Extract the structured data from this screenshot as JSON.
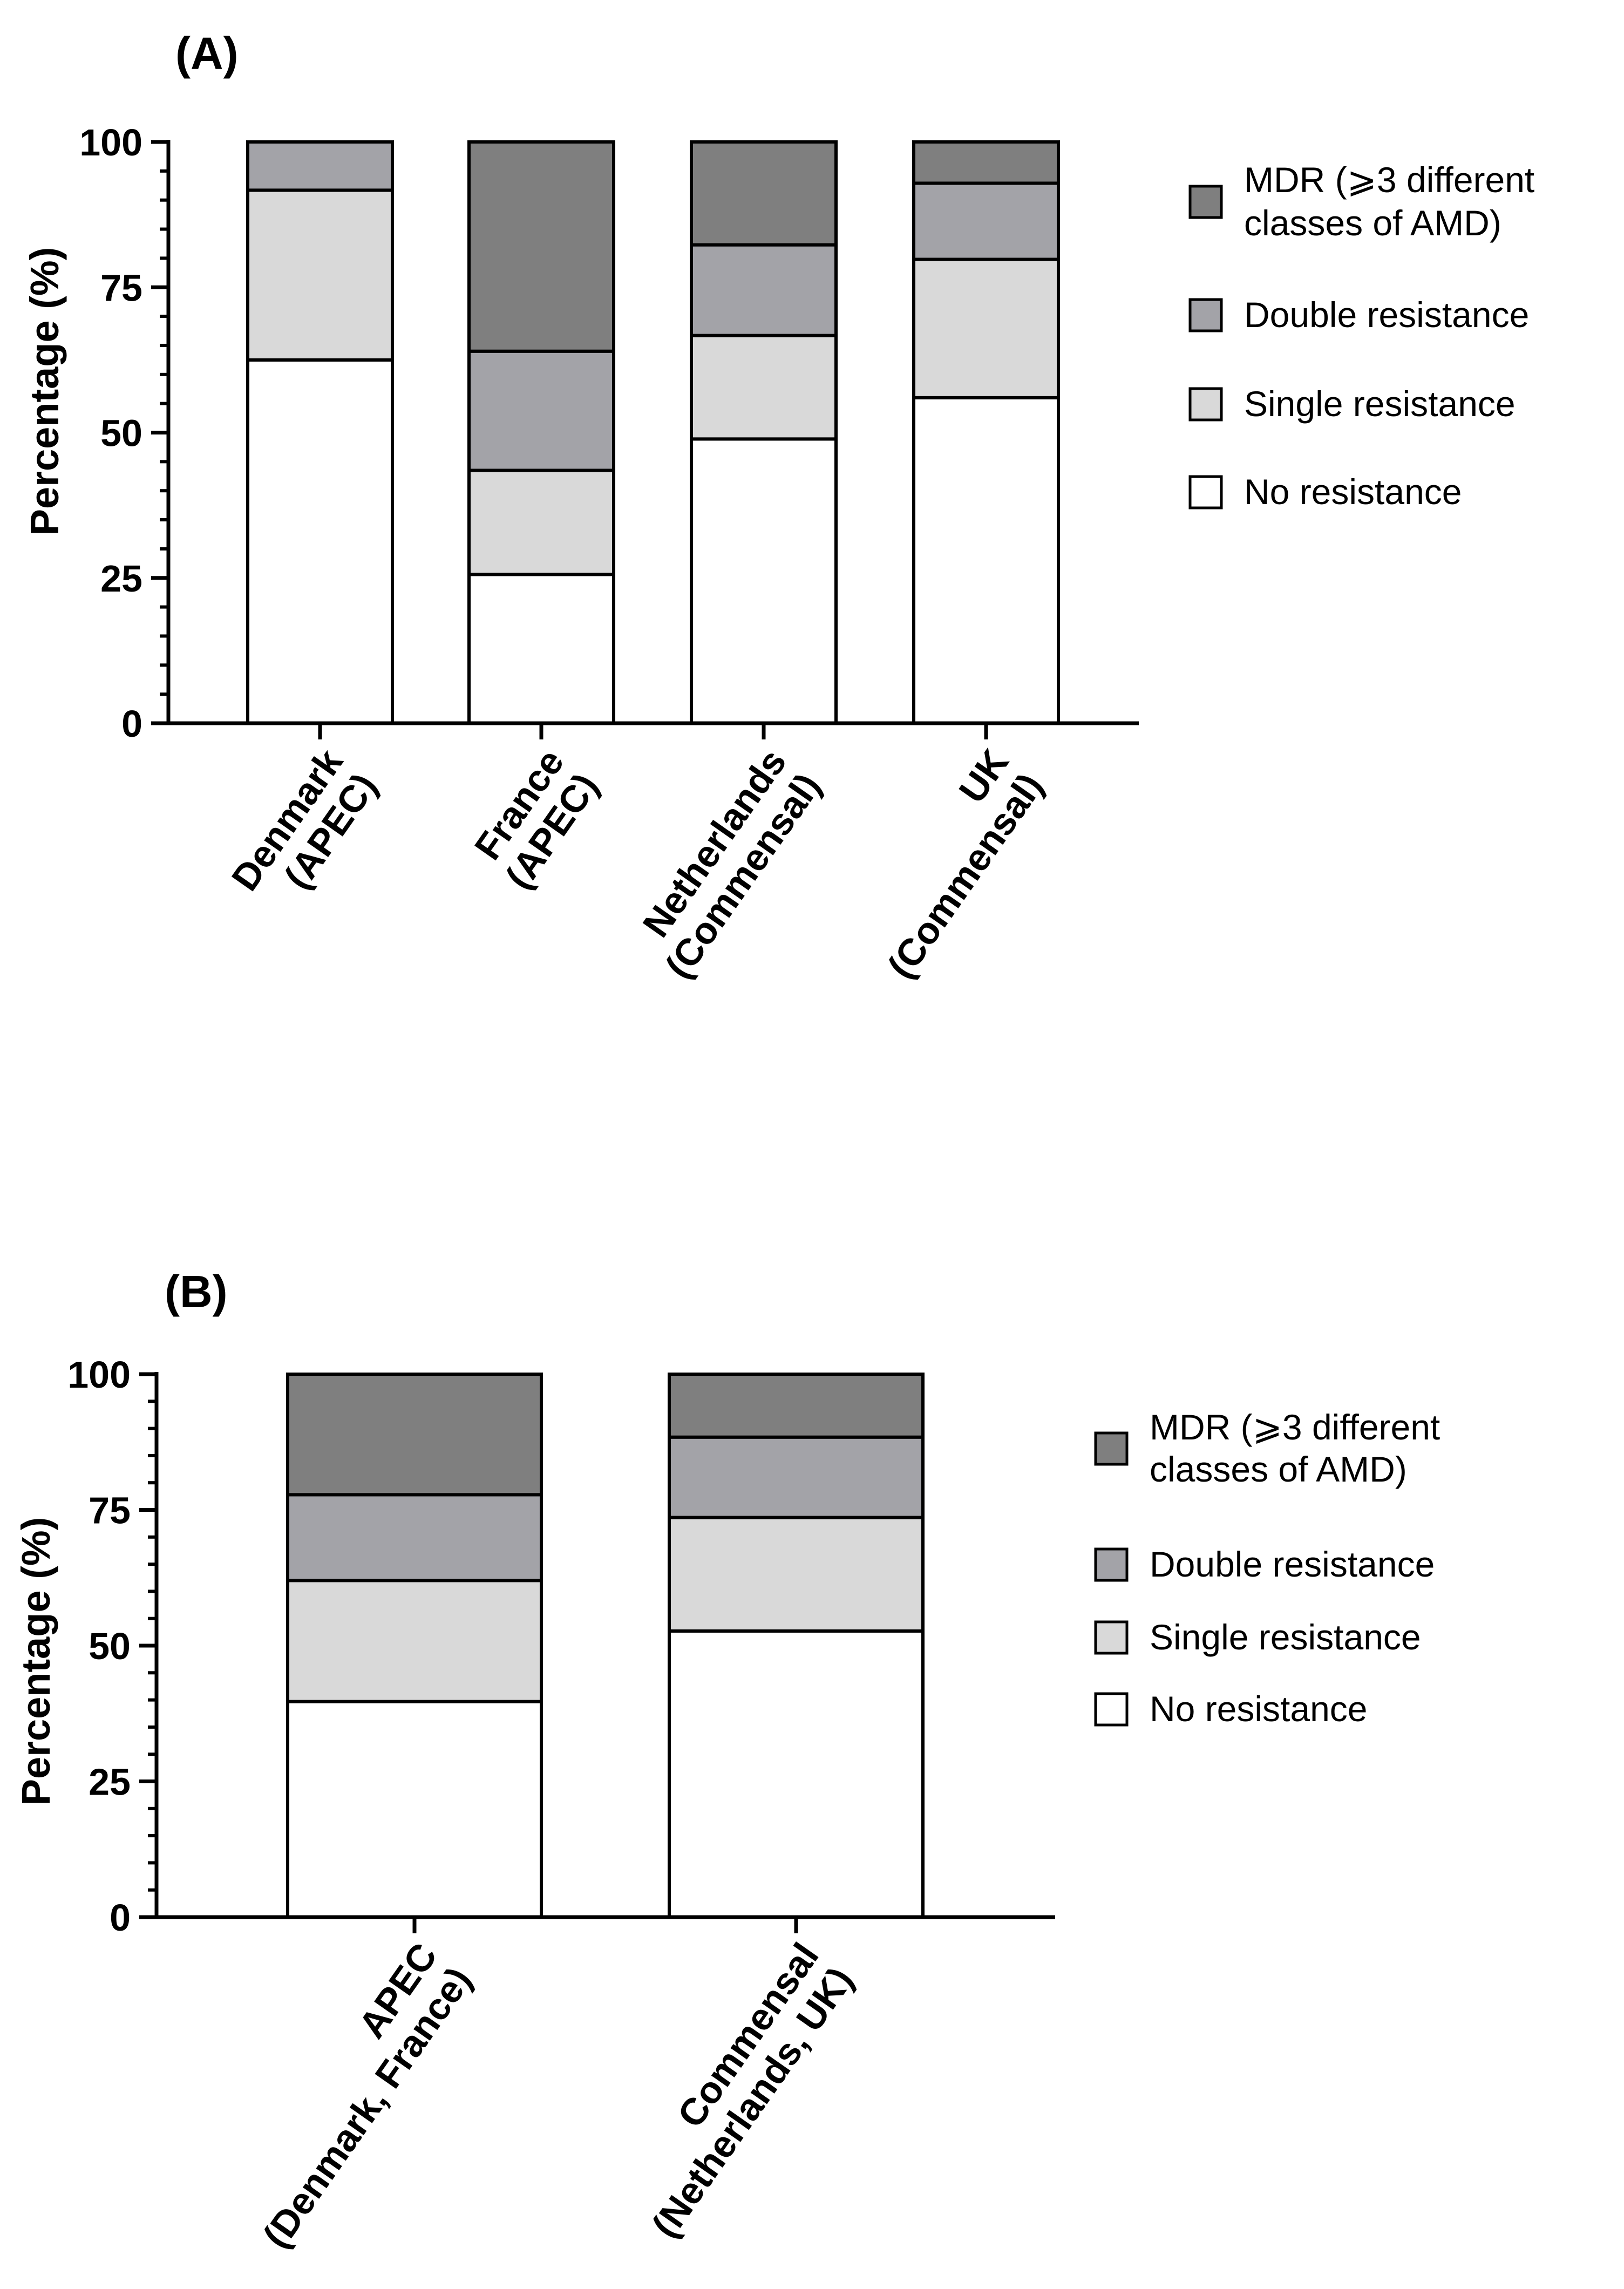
{
  "colors": {
    "MDR": "#7f7f7f",
    "double": "#a3a3a8",
    "single": "#d9d9d9",
    "none": "#ffffff"
  },
  "chart_data": [
    {
      "type": "bar",
      "stacked": true,
      "panel_label": "(A)",
      "title": "",
      "xlabel": "",
      "ylabel": "Percentage (%)",
      "ylim": [
        0,
        100
      ],
      "yticks": [
        "0",
        "25",
        "50",
        "75",
        "100"
      ],
      "categories": [
        [
          "Denmark",
          "(APEC)"
        ],
        [
          "France",
          "(APEC)"
        ],
        [
          "Netherlands",
          "(Commensal)"
        ],
        [
          "UK",
          "(Commensal)"
        ]
      ],
      "series": [
        {
          "key": "none",
          "name": "No resistance",
          "values": [
            62.5,
            25.6,
            48.9,
            56.0
          ]
        },
        {
          "key": "single",
          "name": "Single resistance",
          "values": [
            29.2,
            17.9,
            17.8,
            23.8
          ]
        },
        {
          "key": "double",
          "name": "Double resistance",
          "values": [
            8.3,
            20.5,
            15.6,
            13.1
          ]
        },
        {
          "key": "MDR",
          "name": "MDR (⩾3 different classes of AMD)",
          "values": [
            0.0,
            36.0,
            17.7,
            7.1
          ]
        }
      ],
      "legend": [
        {
          "key": "MDR",
          "lines": [
            "MDR (⩾3 different",
            "classes of AMD)"
          ]
        },
        {
          "key": "double",
          "lines": [
            "Double resistance"
          ]
        },
        {
          "key": "single",
          "lines": [
            "Single resistance"
          ]
        },
        {
          "key": "none",
          "lines": [
            "No resistance"
          ]
        }
      ],
      "legend_position": "right"
    },
    {
      "type": "bar",
      "stacked": true,
      "panel_label": "(B)",
      "title": "",
      "xlabel": "",
      "ylabel": "Percentage (%)",
      "ylim": [
        0,
        100
      ],
      "yticks": [
        "0",
        "25",
        "50",
        "75",
        "100"
      ],
      "categories": [
        [
          "APEC",
          "(Denmark, France)"
        ],
        [
          "Commensal",
          "(Netherlands, UK)"
        ]
      ],
      "series": [
        {
          "key": "none",
          "name": "No resistance",
          "values": [
            39.7,
            52.7
          ]
        },
        {
          "key": "single",
          "name": "Single resistance",
          "values": [
            22.3,
            20.9
          ]
        },
        {
          "key": "double",
          "name": "Double resistance",
          "values": [
            15.8,
            14.8
          ]
        },
        {
          "key": "MDR",
          "name": "MDR (⩾3 different classes of AMD)",
          "values": [
            22.2,
            11.6
          ]
        }
      ],
      "legend": [
        {
          "key": "MDR",
          "lines": [
            "MDR (⩾3 different",
            "classes of AMD)"
          ]
        },
        {
          "key": "double",
          "lines": [
            "Double resistance"
          ]
        },
        {
          "key": "single",
          "lines": [
            "Single resistance"
          ]
        },
        {
          "key": "none",
          "lines": [
            "No resistance"
          ]
        }
      ],
      "legend_position": "right"
    }
  ]
}
